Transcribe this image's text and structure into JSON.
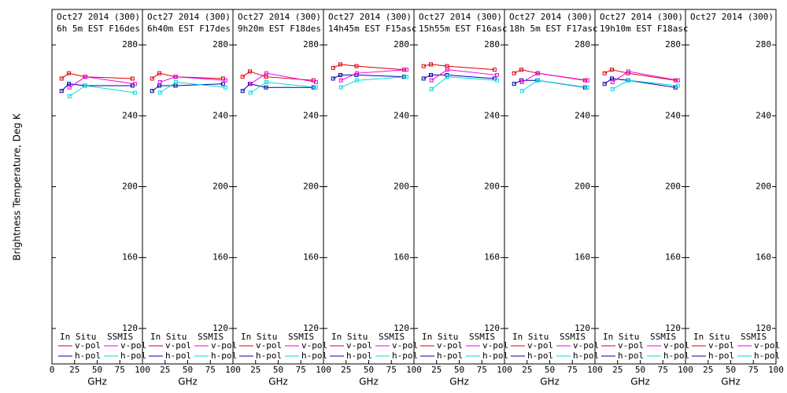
{
  "chart_data": [
    {
      "type": "line",
      "title": "Oct27 2014 (300)",
      "subtitle": "6h 5m EST F16des",
      "ylabel": "Brightness Temperature, Deg K",
      "xlabel": "GHz",
      "xlim": [
        0,
        100
      ],
      "xticks": [
        0,
        25,
        50,
        75,
        100
      ],
      "ylim": [
        100,
        300
      ],
      "yticks": [
        120,
        160,
        200,
        240,
        280
      ],
      "legend_groups": [
        "In Situ",
        "SSMIS"
      ],
      "series": [
        {
          "name": "v-pol",
          "group": 0,
          "color": "#dd0000",
          "x": [
            10.65,
            18.7,
            36.5,
            89
          ],
          "values": [
            261,
            264,
            262,
            261
          ]
        },
        {
          "name": "h-pol",
          "group": 0,
          "color": "#0000aa",
          "x": [
            10.65,
            18.7,
            36.5,
            89
          ],
          "values": [
            254,
            258,
            257,
            257
          ]
        },
        {
          "name": "v-pol",
          "group": 1,
          "color": "#ee00ee",
          "x": [
            19.35,
            37,
            91.65
          ],
          "values": [
            256,
            262,
            258
          ]
        },
        {
          "name": "h-pol",
          "group": 1,
          "color": "#00dddd",
          "x": [
            19.35,
            37,
            91.65
          ],
          "values": [
            251,
            257,
            253
          ]
        }
      ]
    },
    {
      "type": "line",
      "title": "Oct27 2014 (300)",
      "subtitle": "6h40m EST F17des",
      "xlabel": "GHz",
      "xlim": [
        0,
        100
      ],
      "xticks": [
        25,
        50,
        75,
        100
      ],
      "ylim": [
        100,
        300
      ],
      "yticks": [
        120,
        160,
        200,
        240,
        280
      ],
      "legend_groups": [
        "In Situ",
        "SSMIS"
      ],
      "series": [
        {
          "name": "v-pol",
          "group": 0,
          "color": "#dd0000",
          "x": [
            10.65,
            18.7,
            36.5,
            89
          ],
          "values": [
            261,
            264,
            262,
            261
          ]
        },
        {
          "name": "h-pol",
          "group": 0,
          "color": "#0000aa",
          "x": [
            10.65,
            18.7,
            36.5,
            89
          ],
          "values": [
            254,
            257,
            257,
            258
          ]
        },
        {
          "name": "v-pol",
          "group": 1,
          "color": "#ee00ee",
          "x": [
            19.35,
            37,
            91.65
          ],
          "values": [
            259,
            262,
            260
          ]
        },
        {
          "name": "h-pol",
          "group": 1,
          "color": "#00dddd",
          "x": [
            19.35,
            37,
            91.65
          ],
          "values": [
            253,
            259,
            256
          ]
        }
      ]
    },
    {
      "type": "line",
      "title": "Oct27 2014 (300)",
      "subtitle": "9h20m EST F18des",
      "xlabel": "GHz",
      "xlim": [
        0,
        100
      ],
      "xticks": [
        25,
        50,
        75,
        100
      ],
      "ylim": [
        100,
        300
      ],
      "yticks": [
        120,
        160,
        200,
        240,
        280
      ],
      "legend_groups": [
        "In Situ",
        "SSMIS"
      ],
      "series": [
        {
          "name": "v-pol",
          "group": 0,
          "color": "#dd0000",
          "x": [
            10.65,
            18.7,
            36.5,
            89
          ],
          "values": [
            262,
            265,
            262,
            260
          ]
        },
        {
          "name": "h-pol",
          "group": 0,
          "color": "#0000aa",
          "x": [
            10.65,
            18.7,
            36.5,
            89
          ],
          "values": [
            254,
            258,
            256,
            256
          ]
        },
        {
          "name": "v-pol",
          "group": 1,
          "color": "#ee00ee",
          "x": [
            19.35,
            37,
            91.65
          ],
          "values": [
            258,
            264,
            259
          ]
        },
        {
          "name": "h-pol",
          "group": 1,
          "color": "#00dddd",
          "x": [
            19.35,
            37,
            91.65
          ],
          "values": [
            253,
            259,
            256
          ]
        }
      ]
    },
    {
      "type": "line",
      "title": "Oct27 2014 (300)",
      "subtitle": "14h45m EST F15asc",
      "xlabel": "GHz",
      "xlim": [
        0,
        100
      ],
      "xticks": [
        25,
        50,
        75,
        100
      ],
      "ylim": [
        100,
        300
      ],
      "yticks": [
        120,
        160,
        200,
        240,
        280
      ],
      "legend_groups": [
        "In Situ",
        "SSMIS"
      ],
      "series": [
        {
          "name": "v-pol",
          "group": 0,
          "color": "#dd0000",
          "x": [
            10.65,
            18.7,
            36.5,
            89
          ],
          "values": [
            267,
            269,
            268,
            266
          ]
        },
        {
          "name": "h-pol",
          "group": 0,
          "color": "#0000aa",
          "x": [
            10.65,
            18.7,
            36.5,
            89
          ],
          "values": [
            261,
            263,
            263,
            262
          ]
        },
        {
          "name": "v-pol",
          "group": 1,
          "color": "#ee00ee",
          "x": [
            19.35,
            37,
            91.65
          ],
          "values": [
            260,
            264,
            266
          ]
        },
        {
          "name": "h-pol",
          "group": 1,
          "color": "#00dddd",
          "x": [
            19.35,
            37,
            91.65
          ],
          "values": [
            256,
            260,
            262
          ]
        }
      ]
    },
    {
      "type": "line",
      "title": "Oct27 2014 (300)",
      "subtitle": "15h55m EST F16asc",
      "xlabel": "GHz",
      "xlim": [
        0,
        100
      ],
      "xticks": [
        25,
        50,
        75,
        100
      ],
      "ylim": [
        100,
        300
      ],
      "yticks": [
        120,
        160,
        200,
        240,
        280
      ],
      "legend_groups": [
        "In Situ",
        "SSMIS"
      ],
      "series": [
        {
          "name": "v-pol",
          "group": 0,
          "color": "#dd0000",
          "x": [
            10.65,
            18.7,
            36.5,
            89
          ],
          "values": [
            268,
            269,
            268,
            266
          ]
        },
        {
          "name": "h-pol",
          "group": 0,
          "color": "#0000aa",
          "x": [
            10.65,
            18.7,
            36.5,
            89
          ],
          "values": [
            261,
            263,
            263,
            261
          ]
        },
        {
          "name": "v-pol",
          "group": 1,
          "color": "#ee00ee",
          "x": [
            19.35,
            37,
            91.65
          ],
          "values": [
            260,
            266,
            263
          ]
        },
        {
          "name": "h-pol",
          "group": 1,
          "color": "#00dddd",
          "x": [
            19.35,
            37,
            91.65
          ],
          "values": [
            255,
            262,
            260
          ]
        }
      ]
    },
    {
      "type": "line",
      "title": "Oct27 2014 (300)",
      "subtitle": "18h 5m EST F17asc",
      "xlabel": "GHz",
      "xlim": [
        0,
        100
      ],
      "xticks": [
        25,
        50,
        75,
        100
      ],
      "ylim": [
        100,
        300
      ],
      "yticks": [
        120,
        160,
        200,
        240,
        280
      ],
      "legend_groups": [
        "In Situ",
        "SSMIS"
      ],
      "series": [
        {
          "name": "v-pol",
          "group": 0,
          "color": "#dd0000",
          "x": [
            10.65,
            18.7,
            36.5,
            89
          ],
          "values": [
            264,
            266,
            264,
            260
          ]
        },
        {
          "name": "h-pol",
          "group": 0,
          "color": "#0000aa",
          "x": [
            10.65,
            18.7,
            36.5,
            89
          ],
          "values": [
            258,
            260,
            260,
            256
          ]
        },
        {
          "name": "v-pol",
          "group": 1,
          "color": "#ee00ee",
          "x": [
            19.35,
            37,
            91.65
          ],
          "values": [
            259,
            264,
            260
          ]
        },
        {
          "name": "h-pol",
          "group": 1,
          "color": "#00dddd",
          "x": [
            19.35,
            37,
            91.65
          ],
          "values": [
            254,
            260,
            256
          ]
        }
      ]
    },
    {
      "type": "line",
      "title": "Oct27 2014 (300)",
      "subtitle": "19h10m EST F18asc",
      "xlabel": "GHz",
      "xlim": [
        0,
        100
      ],
      "xticks": [
        25,
        50,
        75,
        100
      ],
      "ylim": [
        100,
        300
      ],
      "yticks": [
        120,
        160,
        200,
        240,
        280
      ],
      "legend_groups": [
        "In Situ",
        "SSMIS"
      ],
      "series": [
        {
          "name": "v-pol",
          "group": 0,
          "color": "#dd0000",
          "x": [
            10.65,
            18.7,
            36.5,
            89
          ],
          "values": [
            264,
            266,
            264,
            260
          ]
        },
        {
          "name": "h-pol",
          "group": 0,
          "color": "#0000aa",
          "x": [
            10.65,
            18.7,
            36.5,
            89
          ],
          "values": [
            258,
            261,
            260,
            256
          ]
        },
        {
          "name": "v-pol",
          "group": 1,
          "color": "#ee00ee",
          "x": [
            19.35,
            37,
            91.65
          ],
          "values": [
            259,
            265,
            260
          ]
        },
        {
          "name": "h-pol",
          "group": 1,
          "color": "#00dddd",
          "x": [
            19.35,
            37,
            91.65
          ],
          "values": [
            255,
            260,
            257
          ]
        }
      ]
    },
    {
      "type": "line",
      "title": "Oct27 2014 (300)",
      "xlabel": "GHz",
      "xlim": [
        0,
        100
      ],
      "xticks": [
        25,
        50,
        75,
        100
      ],
      "ylim": [
        100,
        300
      ],
      "yticks": [
        120,
        160,
        200,
        240,
        280
      ],
      "legend_groups": [
        "In Situ",
        "SSMIS"
      ],
      "series": [
        {
          "name": "v-pol",
          "group": 0,
          "color": "#dd0000",
          "x": [],
          "values": []
        },
        {
          "name": "h-pol",
          "group": 0,
          "color": "#0000aa",
          "x": [],
          "values": []
        },
        {
          "name": "v-pol",
          "group": 1,
          "color": "#ee00ee",
          "x": [],
          "values": []
        },
        {
          "name": "h-pol",
          "group": 1,
          "color": "#00dddd",
          "x": [],
          "values": []
        }
      ]
    }
  ]
}
